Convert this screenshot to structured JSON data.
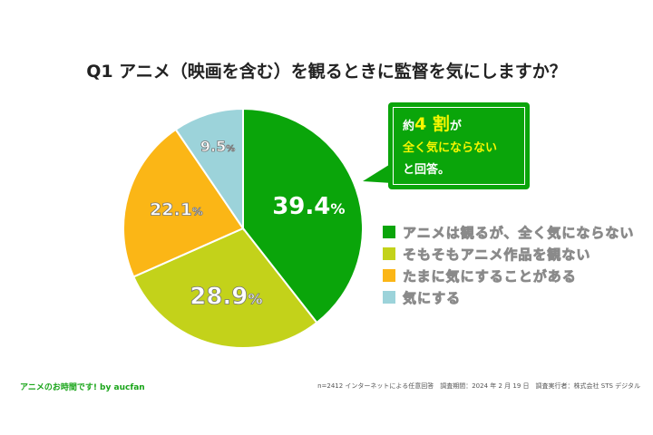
{
  "chart_data": {
    "type": "pie",
    "title": "Q1 アニメ（映画を含む）を観るときに監督を気にしますか？",
    "start": "top",
    "direction": "clockwise",
    "slices": [
      {
        "label": "アニメは観るが、全く気にならない",
        "value": 39.4,
        "display": "39.4",
        "color": "#0aa50a"
      },
      {
        "label": "そもそもアニメ作品を観ない",
        "value": 28.9,
        "display": "28.9",
        "color": "#c3d21a"
      },
      {
        "label": "たまに気にすることがある",
        "value": 22.1,
        "display": "22.1",
        "color": "#fbb616"
      },
      {
        "label": "気にする",
        "value": 9.5,
        "display": "9.5",
        "color": "#9cd3da"
      }
    ],
    "unit": "%",
    "legend_position": "right"
  },
  "callout": {
    "line1_prefix": "約",
    "line1_big": "4 割",
    "line1_suffix": "が",
    "line2": "全く気にならない",
    "line3": "と回答。"
  },
  "footer": {
    "brand": "アニメのお時間です! by aucfan",
    "note": "n=2412 インターネットによる任意回答　調査期間：2024 年 2 月 19 日　調査実行者：株式会社 STS デジタル"
  }
}
